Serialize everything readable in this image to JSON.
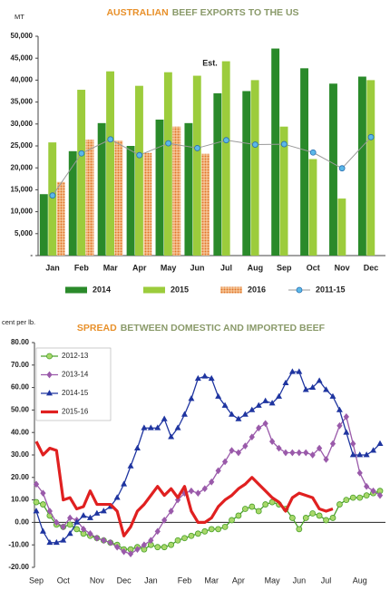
{
  "chart_data": [
    {
      "type": "bar",
      "title": [
        "AUSTRALIAN",
        "BEEF EXPORTS TO THE US"
      ],
      "title_colors": [
        "#e8902a",
        "#8a9a6a"
      ],
      "y_label": "MT",
      "annotation": "Est.",
      "categories": [
        "Jan",
        "Feb",
        "Mar",
        "Apr",
        "May",
        "Jun",
        "Jul",
        "Aug",
        "Sep",
        "Oct",
        "Nov",
        "Dec"
      ],
      "ylim": [
        0,
        50000
      ],
      "yticks": [
        {
          "value": 0,
          "label": "-"
        },
        {
          "value": 5000,
          "label": "5,000"
        },
        {
          "value": 10000,
          "label": "10,000"
        },
        {
          "value": 15000,
          "label": "15,000"
        },
        {
          "value": 20000,
          "label": "20,000"
        },
        {
          "value": 25000,
          "label": "25,000"
        },
        {
          "value": 30000,
          "label": "30,000"
        },
        {
          "value": 35000,
          "label": "35,000"
        },
        {
          "value": 40000,
          "label": "40,000"
        },
        {
          "value": 45000,
          "label": "45,000"
        },
        {
          "value": 50000,
          "label": "50,000"
        }
      ],
      "series": [
        {
          "name": "2014",
          "color": "#2a8a2a",
          "values": [
            14000,
            23800,
            30200,
            25000,
            31000,
            30200,
            37000,
            37500,
            47200,
            42700,
            39200,
            40800
          ]
        },
        {
          "name": "2015",
          "color": "#9ccc3c",
          "values": [
            25800,
            37800,
            42000,
            38700,
            41800,
            41000,
            44300,
            40000,
            29400,
            22000,
            13000,
            40000
          ]
        },
        {
          "name": "2016",
          "color": "#e07428",
          "pattern": "dots",
          "values": [
            16800,
            26400,
            26200,
            23400,
            29400,
            23200,
            null,
            null,
            null,
            null,
            null,
            null
          ]
        },
        {
          "name": "2011-15",
          "kind": "line",
          "color": "#9a9a9a",
          "marker": "circle",
          "marker_color": "#5bb8e8",
          "values": [
            13700,
            23300,
            26500,
            22900,
            25600,
            24500,
            26300,
            25300,
            25400,
            23500,
            19900,
            27000
          ]
        }
      ]
    },
    {
      "type": "line",
      "title": [
        "SPREAD",
        "BETWEEN DOMESTIC AND IMPORTED BEEF"
      ],
      "title_colors": [
        "#e8902a",
        "#8a9a6a"
      ],
      "y_label": "cent per lb.",
      "categories": [
        "Sep",
        null,
        null,
        null,
        "Oct",
        null,
        null,
        null,
        null,
        "Nov",
        null,
        null,
        null,
        "Dec",
        null,
        null,
        null,
        "Jan",
        null,
        null,
        null,
        null,
        "Feb",
        null,
        null,
        null,
        "Mar",
        null,
        null,
        null,
        "Apr",
        null,
        null,
        null,
        null,
        "May",
        null,
        null,
        null,
        "Jun",
        null,
        null,
        null,
        "Jul",
        null,
        null,
        null,
        null,
        "Aug",
        null,
        null,
        null
      ],
      "ylim": [
        -20,
        80
      ],
      "yticks": [
        {
          "value": -20,
          "label": "-20.00"
        },
        {
          "value": -10,
          "label": "-10.00"
        },
        {
          "value": 0,
          "label": "0.00"
        },
        {
          "value": 10,
          "label": "10.00"
        },
        {
          "value": 20,
          "label": "20.00"
        },
        {
          "value": 30,
          "label": "30.00"
        },
        {
          "value": 40,
          "label": "40.00"
        },
        {
          "value": 50,
          "label": "50.00"
        },
        {
          "value": 60,
          "label": "60.00"
        },
        {
          "value": 70,
          "label": "70.00"
        },
        {
          "value": 80,
          "label": "80.00"
        }
      ],
      "series": [
        {
          "name": "2012-13",
          "color": "#4aa02a",
          "marker": "circle",
          "marker_color": "#a8d86a",
          "values": [
            9,
            8,
            3,
            -1,
            -2,
            -1,
            -3,
            -5,
            -6,
            -7,
            -8,
            -9,
            -10,
            -12,
            -12,
            -11,
            -12,
            -10,
            -11,
            -11,
            -10,
            -8,
            -7,
            -6,
            -5,
            -4,
            -3,
            -3,
            -2,
            1,
            3,
            6,
            7,
            5,
            8,
            9,
            8,
            6,
            2,
            -3,
            2,
            4,
            3,
            1,
            2,
            8,
            10,
            11,
            11,
            12,
            13,
            14
          ]
        },
        {
          "name": "2013-14",
          "color": "#9a5aaa",
          "marker": "diamond",
          "marker_color": "#9a5aaa",
          "values": [
            17,
            13,
            5,
            0,
            -2,
            2,
            1,
            -3,
            -5,
            -7,
            -8,
            -9,
            -11,
            -13,
            -14,
            -12,
            -10,
            -8,
            -4,
            1,
            5,
            10,
            13,
            14,
            13,
            15,
            18,
            23,
            27,
            32,
            31,
            34,
            38,
            42,
            44,
            36,
            33,
            31,
            31,
            31,
            31,
            30,
            33,
            28,
            35,
            43,
            47,
            35,
            22,
            16,
            14,
            12
          ]
        },
        {
          "name": "2014-15",
          "color": "#1f35a0",
          "marker": "triangle",
          "marker_color": "#1f35a0",
          "values": [
            5,
            -4,
            -9,
            -9,
            -8,
            -5,
            0,
            3,
            2,
            4,
            5,
            7,
            11,
            17,
            25,
            33,
            42,
            42,
            42,
            46,
            38,
            42,
            48,
            55,
            64,
            65,
            64,
            56,
            52,
            48,
            46,
            48,
            50,
            52,
            54,
            53,
            56,
            62,
            67,
            67,
            59,
            60,
            63,
            59,
            56,
            50,
            40,
            30,
            30,
            30,
            32,
            35
          ]
        },
        {
          "name": "2015-16",
          "color": "#e02020",
          "values": [
            36,
            30,
            33,
            32,
            10,
            11,
            6,
            7,
            14,
            8,
            8,
            8,
            5,
            -6,
            -2,
            5,
            8,
            12,
            16,
            12,
            15,
            11,
            16,
            5,
            0,
            0,
            2,
            7,
            10,
            12,
            15,
            17,
            20,
            17,
            14,
            11,
            9,
            5,
            11,
            13,
            12,
            11,
            6,
            5,
            6,
            null,
            null,
            null,
            null,
            null,
            null,
            null
          ]
        }
      ]
    }
  ]
}
